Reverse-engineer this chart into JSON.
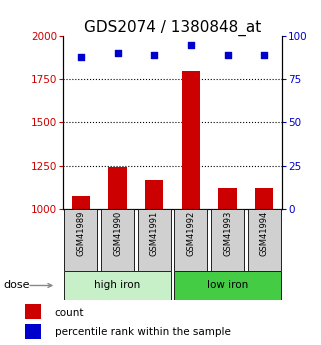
{
  "title": "GDS2074 / 1380848_at",
  "samples": [
    "GSM41989",
    "GSM41990",
    "GSM41991",
    "GSM41992",
    "GSM41993",
    "GSM41994"
  ],
  "counts": [
    1075,
    1240,
    1165,
    1800,
    1120,
    1120
  ],
  "percentiles": [
    88,
    90,
    89,
    95,
    89,
    89
  ],
  "ylim_left": [
    1000,
    2000
  ],
  "ylim_right": [
    0,
    100
  ],
  "yticks_left": [
    1000,
    1250,
    1500,
    1750,
    2000
  ],
  "yticks_right": [
    0,
    25,
    50,
    75,
    100
  ],
  "bar_color": "#cc0000",
  "dot_color": "#0000cc",
  "bar_width": 0.5,
  "groups": [
    {
      "label": "high iron",
      "indices": [
        0,
        1,
        2
      ],
      "color": "#c8f0c8"
    },
    {
      "label": "low iron",
      "indices": [
        3,
        4,
        5
      ],
      "color": "#44cc44"
    }
  ],
  "dose_label": "dose",
  "legend_count": "count",
  "legend_percentile": "percentile rank within the sample",
  "title_fontsize": 11,
  "axis_label_color_left": "#cc0000",
  "axis_label_color_right": "#0000cc",
  "grid_color": "#000000",
  "sample_box_color": "#d0d0d0"
}
